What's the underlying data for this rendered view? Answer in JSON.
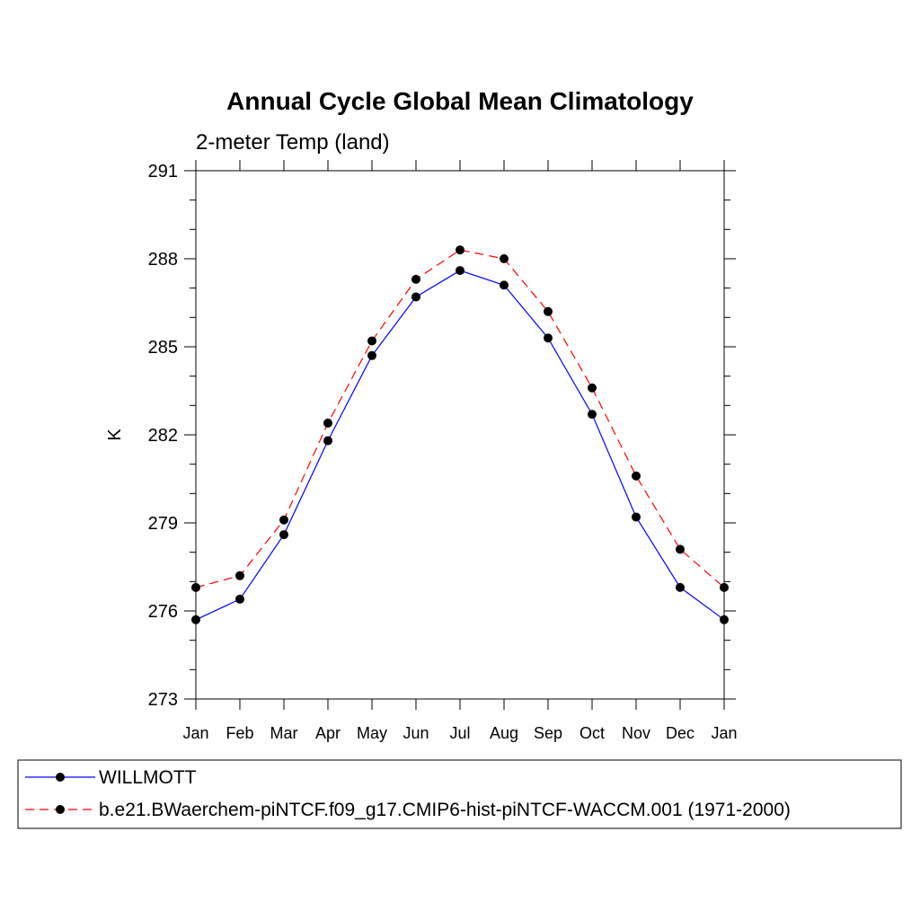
{
  "chart_data": {
    "type": "line",
    "title": "Annual Cycle Global Mean Climatology",
    "subtitle": "2-meter Temp (land)",
    "xlabel": "",
    "ylabel": "K",
    "categories": [
      "Jan",
      "Feb",
      "Mar",
      "Apr",
      "May",
      "Jun",
      "Jul",
      "Aug",
      "Sep",
      "Oct",
      "Nov",
      "Dec",
      "Jan"
    ],
    "ylim": [
      273,
      291
    ],
    "yticks": [
      273,
      276,
      279,
      282,
      285,
      288,
      291
    ],
    "grid": false,
    "legend_position": "bottom",
    "series": [
      {
        "name": "WILLMOTT",
        "color": "#0000ff",
        "dash": "solid",
        "marker_color": "#000000",
        "values": [
          275.7,
          276.4,
          278.6,
          281.8,
          284.7,
          286.7,
          287.6,
          287.1,
          285.3,
          282.7,
          279.2,
          276.8,
          275.7
        ]
      },
      {
        "name": "b.e21.BWaerchem-piNTCF.f09_g17.CMIP6-hist-piNTCF-WACCM.001 (1971-2000)",
        "color": "#ff0000",
        "dash": "dashed",
        "marker_color": "#000000",
        "values": [
          276.8,
          277.2,
          279.1,
          282.4,
          285.2,
          287.3,
          288.3,
          288.0,
          286.2,
          283.6,
          280.6,
          278.1,
          276.8
        ]
      }
    ]
  }
}
